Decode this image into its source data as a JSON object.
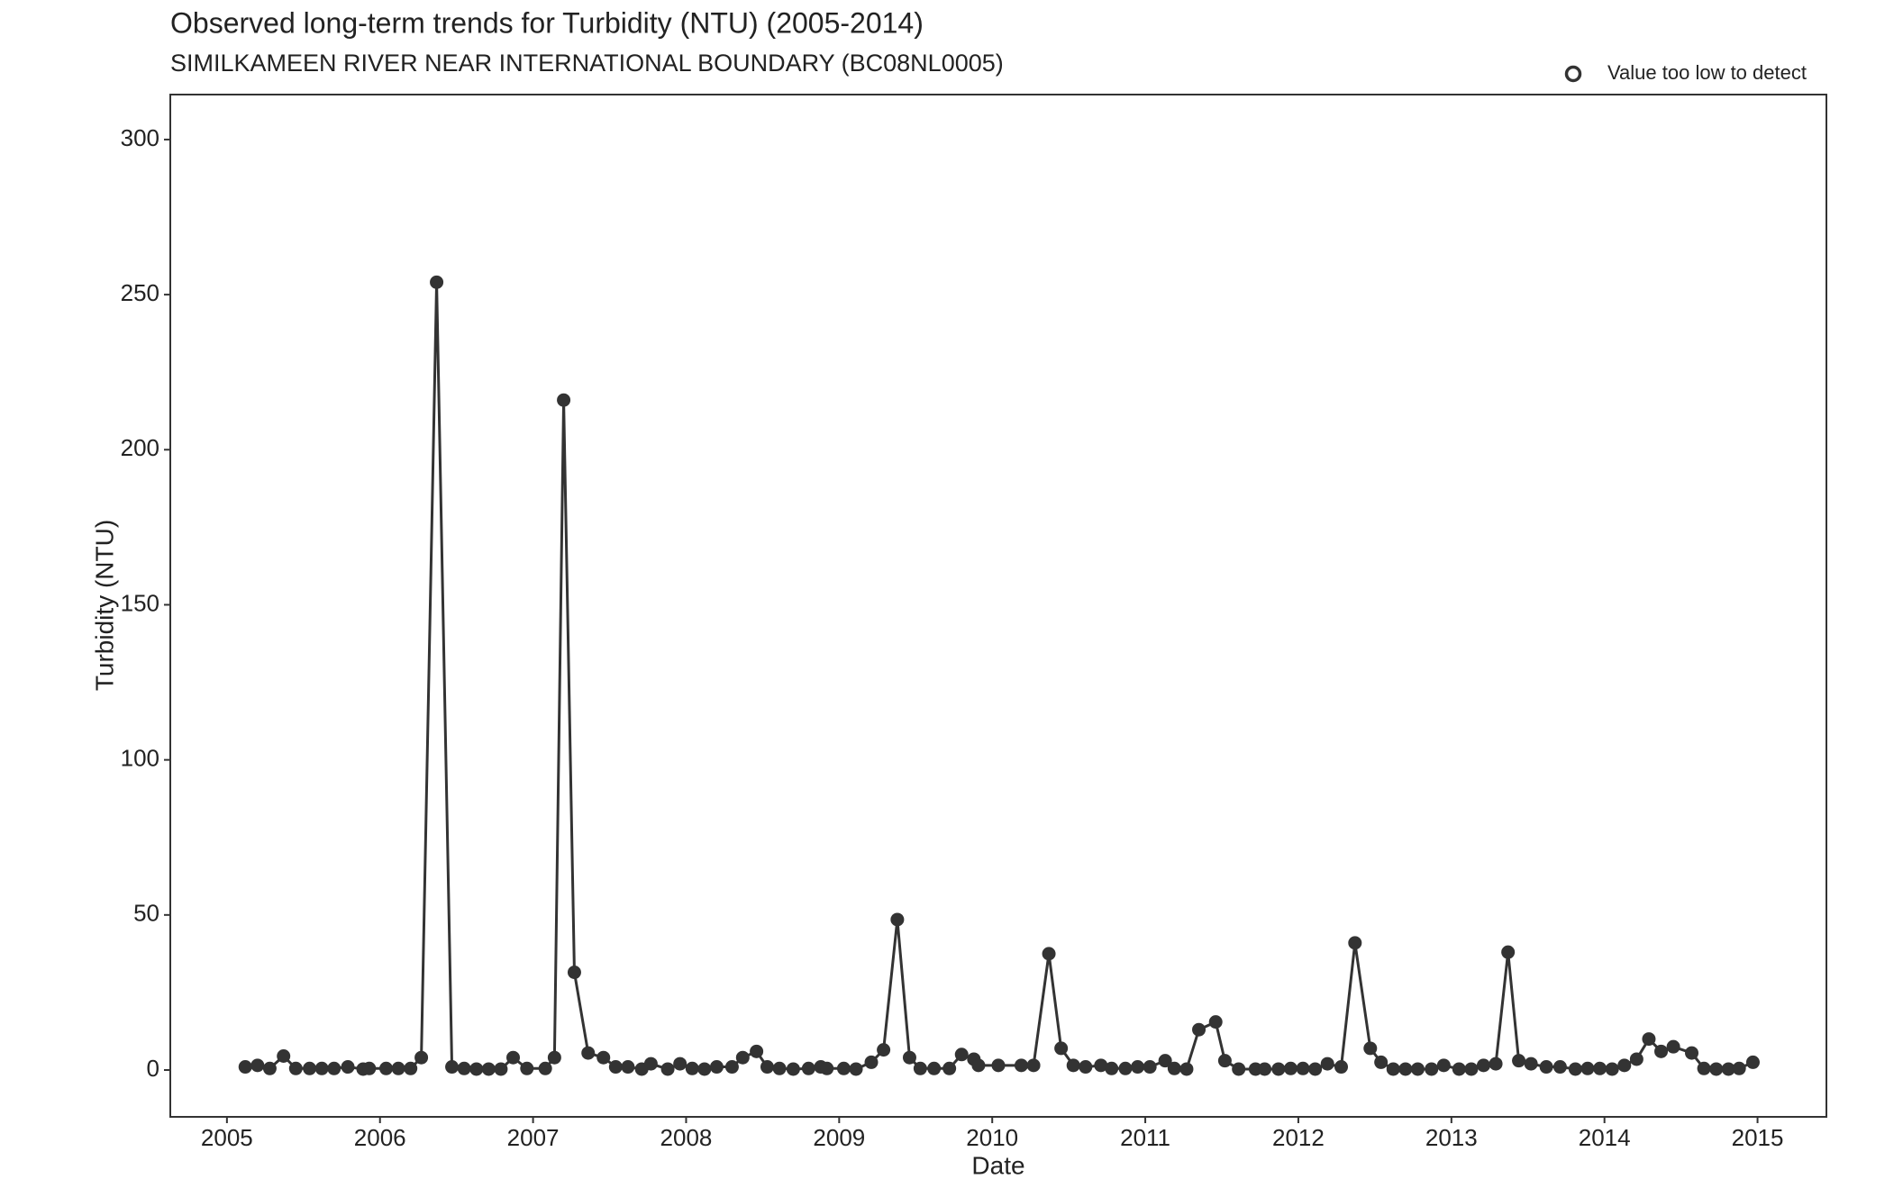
{
  "chart_data": {
    "type": "line",
    "title": "Observed long-term trends for Turbidity (NTU) (2005-2014)",
    "subtitle": "SIMILKAMEEN RIVER NEAR INTERNATIONAL BOUNDARY (BC08NL0005)",
    "x_label": "Date",
    "y_label": "Turbidity (NTU)",
    "legend": {
      "label": "Value too low to detect",
      "marker": "open-circle",
      "position": "top-right"
    },
    "color": "#333333",
    "x": [
      2005.12,
      2005.2,
      2005.28,
      2005.37,
      2005.45,
      2005.54,
      2005.62,
      2005.7,
      2005.79,
      2005.89,
      2005.93,
      2006.04,
      2006.12,
      2006.2,
      2006.27,
      2006.37,
      2006.47,
      2006.55,
      2006.63,
      2006.71,
      2006.79,
      2006.87,
      2006.96,
      2007.08,
      2007.14,
      2007.2,
      2007.27,
      2007.36,
      2007.46,
      2007.54,
      2007.62,
      2007.71,
      2007.77,
      2007.88,
      2007.96,
      2008.04,
      2008.12,
      2008.2,
      2008.3,
      2008.37,
      2008.46,
      2008.53,
      2008.61,
      2008.7,
      2008.8,
      2008.88,
      2008.92,
      2009.03,
      2009.11,
      2009.21,
      2009.29,
      2009.38,
      2009.46,
      2009.53,
      2009.62,
      2009.72,
      2009.8,
      2009.88,
      2009.91,
      2010.04,
      2010.19,
      2010.27,
      2010.37,
      2010.45,
      2010.53,
      2010.61,
      2010.71,
      2010.78,
      2010.87,
      2010.95,
      2011.03,
      2011.13,
      2011.19,
      2011.27,
      2011.35,
      2011.46,
      2011.52,
      2011.61,
      2011.72,
      2011.78,
      2011.87,
      2011.95,
      2012.03,
      2012.11,
      2012.19,
      2012.28,
      2012.37,
      2012.47,
      2012.54,
      2012.62,
      2012.7,
      2012.78,
      2012.87,
      2012.95,
      2013.05,
      2013.13,
      2013.21,
      2013.29,
      2013.37,
      2013.44,
      2013.52,
      2013.62,
      2013.71,
      2013.81,
      2013.89,
      2013.97,
      2014.05,
      2014.13,
      2014.21,
      2014.29,
      2014.37,
      2014.45,
      2014.57,
      2014.65,
      2014.73,
      2014.81,
      2014.88,
      2014.97
    ],
    "values": [
      1,
      1.5,
      0.5,
      4.5,
      0.5,
      0.5,
      0.5,
      0.5,
      1,
      0.3,
      0.5,
      0.5,
      0.5,
      0.5,
      4,
      254,
      1,
      0.5,
      0.3,
      0.3,
      0.3,
      4,
      0.5,
      0.5,
      4,
      216,
      31.5,
      5.5,
      4,
      1,
      1,
      0.3,
      2,
      0.3,
      2,
      0.5,
      0.3,
      1,
      1,
      4,
      6,
      1,
      0.5,
      0.3,
      0.5,
      1,
      0.5,
      0.5,
      0.3,
      2.5,
      6.5,
      48.5,
      4,
      0.5,
      0.5,
      0.5,
      5,
      3.5,
      1.5,
      1.5,
      1.5,
      1.5,
      37.5,
      7,
      1.5,
      1,
      1.5,
      0.5,
      0.5,
      1,
      1,
      3,
      0.5,
      0.3,
      13,
      15.5,
      3,
      0.3,
      0.3,
      0.3,
      0.3,
      0.5,
      0.5,
      0.3,
      2,
      1,
      41,
      7,
      2.5,
      0.3,
      0.3,
      0.3,
      0.3,
      1.5,
      0.3,
      0.3,
      1.5,
      2,
      38,
      3,
      2,
      1,
      1,
      0.3,
      0.5,
      0.5,
      0.3,
      1.5,
      3.5,
      10,
      6,
      7.5,
      5.5,
      0.5,
      0.3,
      0.3,
      0.5,
      2.5
    ],
    "xlim": [
      2004.63,
      2015.45
    ],
    "xticks": [
      2005,
      2006,
      2007,
      2008,
      2009,
      2010,
      2011,
      2012,
      2013,
      2014,
      2015
    ],
    "ylim": [
      -15.1,
      314.5
    ],
    "yticks": [
      0,
      50,
      100,
      150,
      200,
      250,
      300
    ],
    "grid": false
  }
}
